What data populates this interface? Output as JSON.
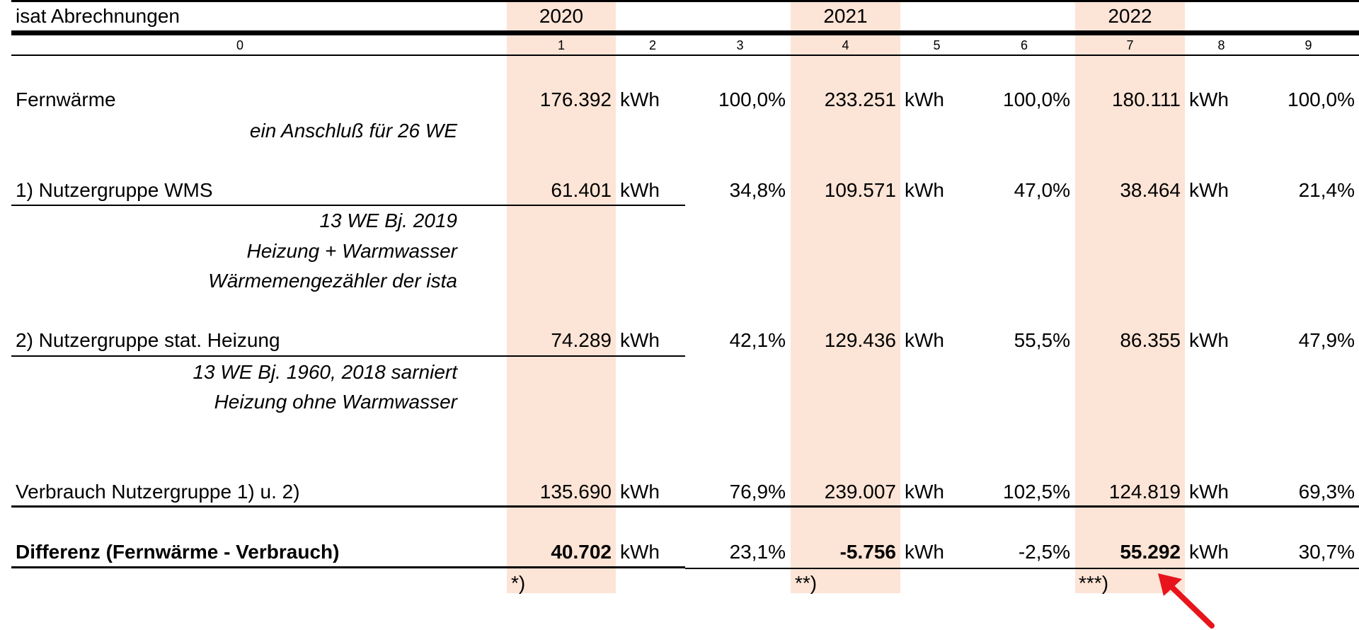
{
  "colors": {
    "year_highlight": "#fce4d6",
    "arrow": "#e8141c",
    "rule": "#000000"
  },
  "header": {
    "title": "isat Abrechnungen",
    "years": [
      "2020",
      "2021",
      "2022"
    ],
    "column_index": [
      "0",
      "1",
      "2",
      "3",
      "4",
      "5",
      "6",
      "7",
      "8",
      "9"
    ]
  },
  "rows": {
    "fernwaerme": {
      "label": "Fernwärme",
      "note": "ein Anschluß für 26 WE",
      "y2020": {
        "value": "176.392",
        "unit": "kWh",
        "pct": "100,0%"
      },
      "y2021": {
        "value": "233.251",
        "unit": "kWh",
        "pct": "100,0%"
      },
      "y2022": {
        "value": "180.111",
        "unit": "kWh",
        "pct": "100,0%"
      }
    },
    "wms": {
      "label": "1) Nutzergruppe WMS",
      "notes": [
        "13 WE Bj. 2019",
        "Heizung + Warmwasser",
        "Wärmemengezähler der ista"
      ],
      "y2020": {
        "value": "61.401",
        "unit": "kWh",
        "pct": "34,8%"
      },
      "y2021": {
        "value": "109.571",
        "unit": "kWh",
        "pct": "47,0%"
      },
      "y2022": {
        "value": "38.464",
        "unit": "kWh",
        "pct": "21,4%"
      }
    },
    "stat": {
      "label": "2) Nutzergruppe stat. Heizung",
      "notes": [
        "13 WE Bj. 1960, 2018 sarniert",
        "Heizung ohne Warmwasser"
      ],
      "y2020": {
        "value": "74.289",
        "unit": "kWh",
        "pct": "42,1%"
      },
      "y2021": {
        "value": "129.436",
        "unit": "kWh",
        "pct": "55,5%"
      },
      "y2022": {
        "value": "86.355",
        "unit": "kWh",
        "pct": "47,9%"
      }
    },
    "verbrauch": {
      "label": "Verbrauch Nutzergruppe 1) u. 2)",
      "y2020": {
        "value": "135.690",
        "unit": "kWh",
        "pct": "76,9%"
      },
      "y2021": {
        "value": "239.007",
        "unit": "kWh",
        "pct": "102,5%"
      },
      "y2022": {
        "value": "124.819",
        "unit": "kWh",
        "pct": "69,3%"
      }
    },
    "differenz": {
      "label": "Differenz (Fernwärme - Verbrauch)",
      "y2020": {
        "value": "40.702",
        "unit": "kWh",
        "pct": "23,1%"
      },
      "y2021": {
        "value": "-5.756",
        "unit": "kWh",
        "pct": "-2,5%"
      },
      "y2022": {
        "value": "55.292",
        "unit": "kWh",
        "pct": "30,7%"
      }
    }
  },
  "footnotes": [
    "*)",
    "**)",
    "***)"
  ],
  "annotation": {
    "icon": "red-arrow-icon"
  }
}
